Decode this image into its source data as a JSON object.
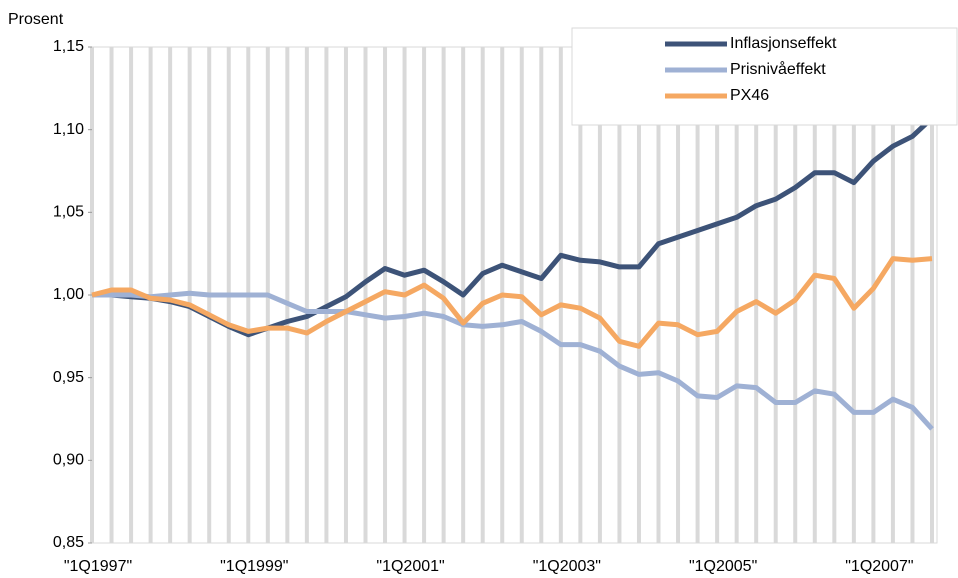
{
  "chart_data": {
    "type": "line",
    "y_label": "Prosent",
    "categories": [
      "\"1Q1997\"",
      null,
      null,
      null,
      null,
      null,
      null,
      null,
      "\"1Q1999\"",
      null,
      null,
      null,
      null,
      null,
      null,
      null,
      "\"1Q2001\"",
      null,
      null,
      null,
      null,
      null,
      null,
      null,
      "\"1Q2003\"",
      null,
      null,
      null,
      null,
      null,
      null,
      null,
      "\"1Q2005\"",
      null,
      null,
      null,
      null,
      null,
      null,
      null,
      "\"1Q2007\"",
      null,
      null,
      null
    ],
    "series": [
      {
        "name": "Inflasjonseffekt",
        "color": "#3d5378",
        "values": [
          1.0,
          1.0,
          0.999,
          0.998,
          0.996,
          0.993,
          0.987,
          0.981,
          0.976,
          0.98,
          0.984,
          0.987,
          0.993,
          0.999,
          1.008,
          1.016,
          1.012,
          1.015,
          1.008,
          1.0,
          1.013,
          1.018,
          1.014,
          1.01,
          1.024,
          1.021,
          1.02,
          1.017,
          1.017,
          1.031,
          1.035,
          1.039,
          1.043,
          1.047,
          1.054,
          1.058,
          1.065,
          1.074,
          1.074,
          1.068,
          1.081,
          1.09,
          1.096,
          1.107
        ]
      },
      {
        "name": "Prisnivåeffekt",
        "color": "#9fb1d4",
        "values": [
          1.0,
          1.0,
          1.0,
          0.999,
          1.0,
          1.001,
          1.0,
          1.0,
          1.0,
          1.0,
          0.995,
          0.99,
          0.99,
          0.99,
          0.988,
          0.986,
          0.987,
          0.989,
          0.987,
          0.982,
          0.981,
          0.982,
          0.984,
          0.978,
          0.97,
          0.97,
          0.966,
          0.957,
          0.952,
          0.953,
          0.948,
          0.939,
          0.938,
          0.945,
          0.944,
          0.935,
          0.935,
          0.942,
          0.94,
          0.929,
          0.929,
          0.937,
          0.932,
          0.919
        ]
      },
      {
        "name": "PX46",
        "color": "#f5a862",
        "values": [
          1.0,
          1.003,
          1.003,
          0.998,
          0.997,
          0.994,
          0.988,
          0.982,
          0.978,
          0.98,
          0.98,
          0.977,
          0.984,
          0.99,
          0.996,
          1.002,
          1.0,
          1.006,
          0.998,
          0.983,
          0.995,
          1.0,
          0.999,
          0.988,
          0.994,
          0.992,
          0.986,
          0.972,
          0.969,
          0.983,
          0.982,
          0.976,
          0.978,
          0.99,
          0.996,
          0.989,
          0.997,
          1.012,
          1.01,
          0.992,
          1.004,
          1.022,
          1.021,
          1.022
        ]
      }
    ],
    "ylim": [
      0.85,
      1.15
    ],
    "yticks": [
      {
        "value": 0.85,
        "label": "0,85"
      },
      {
        "value": 0.9,
        "label": "0,90"
      },
      {
        "value": 0.95,
        "label": "0,95"
      },
      {
        "value": 1.0,
        "label": "1,00"
      },
      {
        "value": 1.05,
        "label": "1,05"
      },
      {
        "value": 1.1,
        "label": "1,10"
      },
      {
        "value": 1.15,
        "label": "1,15"
      }
    ],
    "grid": true,
    "legend": "upper right"
  }
}
